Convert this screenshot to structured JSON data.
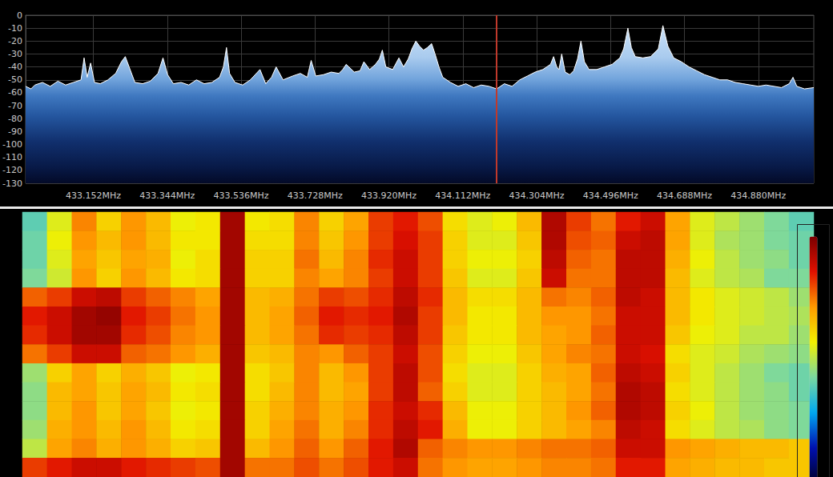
{
  "chart_data": [
    {
      "type": "line",
      "color": "#ffffff",
      "grid": true,
      "xlim": [
        432.976,
        435.024
      ],
      "xticks": [
        {
          "value": 433.152,
          "label": "433.152MHz"
        },
        {
          "value": 433.344,
          "label": "433.344MHz"
        },
        {
          "value": 433.536,
          "label": "433.536MHz"
        },
        {
          "value": 433.728,
          "label": "433.728MHz"
        },
        {
          "value": 433.92,
          "label": "433.920MHz"
        },
        {
          "value": 434.112,
          "label": "434.112MHz"
        },
        {
          "value": 434.304,
          "label": "434.304MHz"
        },
        {
          "value": 434.496,
          "label": "434.496MHz"
        },
        {
          "value": 434.688,
          "label": "434.688MHz"
        },
        {
          "value": 434.88,
          "label": "434.880MHz"
        }
      ],
      "ylim": [
        -130,
        0
      ],
      "yticks": [
        -130,
        -120,
        -110,
        -100,
        -90,
        -80,
        -70,
        -60,
        -50,
        -40,
        -30,
        -20,
        -10,
        0
      ],
      "cursor": 434.2,
      "x": [
        432.976,
        432.99,
        433,
        433.02,
        433.04,
        433.06,
        433.08,
        433.1,
        433.12,
        433.128,
        433.136,
        433.145,
        433.155,
        433.17,
        433.19,
        433.21,
        433.225,
        433.235,
        433.245,
        433.26,
        433.28,
        433.3,
        433.32,
        433.333,
        433.345,
        433.36,
        433.38,
        433.4,
        433.42,
        433.44,
        433.46,
        433.48,
        433.49,
        433.498,
        433.506,
        433.52,
        433.54,
        433.56,
        433.585,
        433.6,
        433.615,
        433.627,
        433.645,
        433.67,
        433.69,
        433.708,
        433.718,
        433.73,
        433.75,
        433.77,
        433.79,
        433.8,
        433.809,
        433.83,
        433.845,
        433.855,
        433.87,
        433.885,
        433.895,
        433.903,
        433.912,
        433.93,
        433.946,
        433.958,
        433.97,
        433.98,
        433.99,
        434,
        434.01,
        434.02,
        434.031,
        434.04,
        434.05,
        434.06,
        434.08,
        434.1,
        434.12,
        434.14,
        434.16,
        434.18,
        434.2,
        434.22,
        434.24,
        434.26,
        434.28,
        434.3,
        434.32,
        434.34,
        434.348,
        434.356,
        434.362,
        434.369,
        434.378,
        434.39,
        434.4,
        434.41,
        434.419,
        434.428,
        434.44,
        434.46,
        434.48,
        434.5,
        434.52,
        434.53,
        434.541,
        434.55,
        434.56,
        434.58,
        434.6,
        434.62,
        434.632,
        434.645,
        434.66,
        434.68,
        434.7,
        434.72,
        434.74,
        434.76,
        434.78,
        434.8,
        434.82,
        434.84,
        434.86,
        434.88,
        434.9,
        434.92,
        434.94,
        434.96,
        434.97,
        434.98,
        435,
        435.024
      ],
      "values": [
        -55,
        -57,
        -54,
        -52,
        -55,
        -51,
        -54,
        -52,
        -50,
        -33,
        -48,
        -37,
        -52,
        -53,
        -50,
        -45,
        -36,
        -32,
        -40,
        -52,
        -53,
        -51,
        -45,
        -33,
        -46,
        -53,
        -52,
        -54,
        -50,
        -53,
        -52,
        -48,
        -40,
        -25,
        -45,
        -52,
        -54,
        -50,
        -42,
        -53,
        -48,
        -40,
        -50,
        -47,
        -45,
        -48,
        -35,
        -47,
        -46,
        -44,
        -45,
        -42,
        -38,
        -44,
        -43,
        -36,
        -42,
        -38,
        -34,
        -27,
        -40,
        -42,
        -33,
        -40,
        -34,
        -26,
        -20,
        -24,
        -27,
        -25,
        -22,
        -30,
        -40,
        -48,
        -52,
        -55,
        -53,
        -56,
        -54,
        -55,
        -57,
        -53,
        -55,
        -50,
        -47,
        -44,
        -42,
        -38,
        -32,
        -40,
        -42,
        -30,
        -44,
        -46,
        -43,
        -34,
        -20,
        -36,
        -42,
        -42,
        -40,
        -38,
        -33,
        -26,
        -10,
        -25,
        -32,
        -33,
        -32,
        -26,
        -8,
        -24,
        -33,
        -36,
        -40,
        -43,
        -46,
        -48,
        -50,
        -50,
        -52,
        -53,
        -54,
        -55,
        -54,
        -55,
        -56,
        -53,
        -48,
        -55,
        -57,
        -56
      ]
    },
    {
      "type": "heatmap",
      "tick_labels": false,
      "colorbar": {
        "range": [
          -85,
          -32
        ]
      },
      "x": [
        433.008,
        433.072,
        433.136,
        433.2,
        433.264,
        433.328,
        433.392,
        433.456,
        433.52,
        433.584,
        433.648,
        433.712,
        433.776,
        433.84,
        433.904,
        433.968,
        434.032,
        434.096,
        434.16,
        434.224,
        434.288,
        434.352,
        434.416,
        434.48,
        434.544,
        434.608,
        434.672,
        434.736,
        434.8,
        434.864,
        434.928,
        434.992
      ],
      "cells": [
        [
          -64,
          -56,
          -46,
          -52,
          -47,
          -50,
          -55,
          -54,
          -35,
          -54,
          -53,
          -46,
          -52,
          -48,
          -42,
          -40,
          -43,
          -53,
          -56,
          -55,
          -50,
          -36,
          -42,
          -45,
          -40,
          -38,
          -48,
          -56,
          -58,
          -60,
          -62,
          -64
        ],
        [
          -63,
          -55,
          -47,
          -50,
          -47,
          -50,
          -54,
          -54,
          -35,
          -53,
          -53,
          -46,
          -51,
          -47,
          -42,
          -39,
          -42,
          -52,
          -56,
          -56,
          -51,
          -36,
          -43,
          -44,
          -38,
          -37,
          -48,
          -56,
          -59,
          -60,
          -62,
          -63
        ],
        [
          -63,
          -56,
          -48,
          -51,
          -48,
          -49,
          -55,
          -53,
          -35,
          -52,
          -52,
          -45,
          -50,
          -46,
          -41,
          -38,
          -42,
          -52,
          -55,
          -55,
          -52,
          -37,
          -44,
          -45,
          -37,
          -37,
          -49,
          -55,
          -58,
          -60,
          -61,
          -63
        ],
        [
          -62,
          -57,
          -47,
          -52,
          -47,
          -50,
          -54,
          -53,
          -35,
          -52,
          -52,
          -46,
          -48,
          -46,
          -42,
          -38,
          -42,
          -51,
          -56,
          -56,
          -51,
          -38,
          -45,
          -45,
          -37,
          -37,
          -50,
          -56,
          -58,
          -59,
          -62,
          -62
        ],
        [
          -44,
          -42,
          -38,
          -37,
          -42,
          -44,
          -46,
          -48,
          -35,
          -50,
          -49,
          -45,
          -42,
          -43,
          -41,
          -37,
          -41,
          -50,
          -53,
          -53,
          -50,
          -45,
          -46,
          -44,
          -37,
          -38,
          -50,
          -54,
          -56,
          -57,
          -58,
          -60
        ],
        [
          -40,
          -38,
          -35,
          -34,
          -40,
          -42,
          -45,
          -47,
          -35,
          -50,
          -48,
          -44,
          -40,
          -41,
          -40,
          -36,
          -42,
          -50,
          -54,
          -54,
          -50,
          -47,
          -47,
          -45,
          -38,
          -38,
          -50,
          -54,
          -56,
          -57,
          -58,
          -59
        ],
        [
          -41,
          -38,
          -35,
          -35,
          -41,
          -43,
          -46,
          -47,
          -35,
          -50,
          -48,
          -45,
          -41,
          -42,
          -41,
          -37,
          -42,
          -51,
          -54,
          -54,
          -50,
          -48,
          -47,
          -44,
          -38,
          -38,
          -51,
          -55,
          -56,
          -58,
          -58,
          -60
        ],
        [
          -45,
          -42,
          -38,
          -38,
          -44,
          -45,
          -47,
          -49,
          -35,
          -51,
          -50,
          -46,
          -47,
          -44,
          -42,
          -38,
          -43,
          -52,
          -55,
          -55,
          -51,
          -48,
          -46,
          -45,
          -38,
          -39,
          -53,
          -56,
          -57,
          -59,
          -60,
          -61
        ],
        [
          -60,
          -52,
          -48,
          -52,
          -49,
          -51,
          -55,
          -54,
          -35,
          -53,
          -51,
          -46,
          -50,
          -47,
          -42,
          -37,
          -43,
          -53,
          -56,
          -56,
          -52,
          -49,
          -48,
          -44,
          -37,
          -38,
          -52,
          -56,
          -58,
          -60,
          -62,
          -63
        ],
        [
          -61,
          -50,
          -48,
          -51,
          -48,
          -50,
          -54,
          -53,
          -35,
          -53,
          -50,
          -46,
          -50,
          -48,
          -42,
          -37,
          -44,
          -52,
          -56,
          -56,
          -52,
          -50,
          -48,
          -45,
          -36,
          -37,
          -53,
          -56,
          -58,
          -60,
          -61,
          -63
        ],
        [
          -61,
          -50,
          -47,
          -51,
          -48,
          -51,
          -55,
          -54,
          -35,
          -52,
          -49,
          -46,
          -49,
          -47,
          -41,
          -38,
          -41,
          -50,
          -55,
          -55,
          -52,
          -50,
          -47,
          -44,
          -36,
          -37,
          -52,
          -55,
          -58,
          -60,
          -61,
          -62
        ],
        [
          -60,
          -49,
          -47,
          -50,
          -47,
          -50,
          -54,
          -53,
          -35,
          -52,
          -48,
          -45,
          -49,
          -46,
          -41,
          -37,
          -40,
          -49,
          -55,
          -55,
          -52,
          -50,
          -48,
          -46,
          -37,
          -38,
          -53,
          -56,
          -58,
          -59,
          -61,
          -62
        ],
        [
          -58,
          -48,
          -46,
          -49,
          -47,
          -49,
          -52,
          -51,
          -35,
          -50,
          -47,
          -44,
          -47,
          -44,
          -40,
          -36,
          -44,
          -46,
          -47,
          -47,
          -46,
          -45,
          -45,
          -44,
          -38,
          -38,
          -47,
          -48,
          -49,
          -50,
          -50,
          -51
        ],
        [
          -42,
          -40,
          -38,
          -38,
          -40,
          -41,
          -42,
          -43,
          -35,
          -45,
          -45,
          -43,
          -45,
          -43,
          -40,
          -38,
          -45,
          -47,
          -48,
          -48,
          -47,
          -46,
          -46,
          -45,
          -40,
          -40,
          -48,
          -49,
          -50,
          -50,
          -51,
          -51
        ]
      ]
    }
  ]
}
